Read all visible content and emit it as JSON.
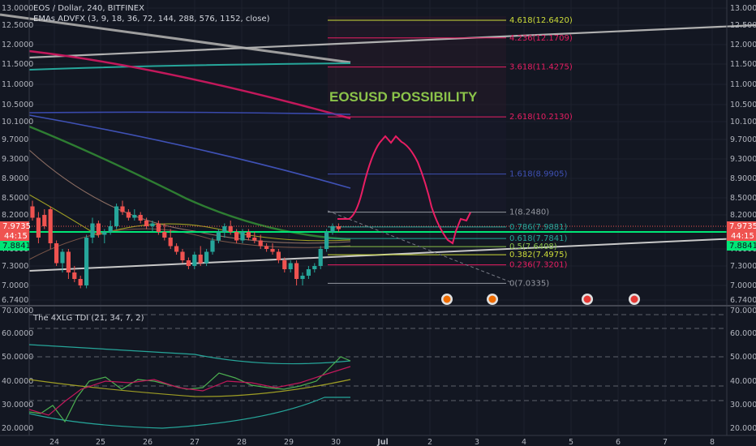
{
  "header": {
    "symbol": "EOS / Dollar, 240, BITFINEX",
    "indicator": "EMAs ADVFX (3, 9, 18, 36, 72, 144, 288, 576, 1152, close)"
  },
  "lower_pane": {
    "title": "The 4XLG TDI (21, 34, 7, 2)"
  },
  "annotation": "EOSUSD POSSIBILITY",
  "price_tags": {
    "left_top": "7.9735",
    "left_mid": "44:15",
    "left_bot": "7.8841",
    "right_top": "7.9735",
    "right_mid": "44:15",
    "right_bot": "7.8841"
  },
  "chart_data": [
    {
      "type": "candlestick",
      "y_axis_labels": [
        "13.0000",
        "12.5000",
        "12.0000",
        "11.5000",
        "11.0000",
        "10.5000",
        "10.1000",
        "9.7000",
        "9.3000",
        "8.9000",
        "8.5000",
        "8.2000",
        "7.9000",
        "7.6000",
        "7.3000",
        "7.0000",
        "6.7400"
      ],
      "x_axis_labels": [
        "24",
        "25",
        "26",
        "27",
        "28",
        "29",
        "30",
        "Jul",
        "2",
        "3",
        "4",
        "5",
        "6",
        "7",
        "8"
      ],
      "fibonacci": [
        {
          "label": "4.618(12.6420)",
          "value": 12.642,
          "color": "#cddc39"
        },
        {
          "label": "4.236(12.1709)",
          "value": 12.1709,
          "color": "#e91e63"
        },
        {
          "label": "3.618(11.4275)",
          "value": 11.4275,
          "color": "#e91e63"
        },
        {
          "label": "2.618(10.2130)",
          "value": 10.213,
          "color": "#e91e63"
        },
        {
          "label": "1.618(8.9905)",
          "value": 8.9905,
          "color": "#3f51b5"
        },
        {
          "label": "1(8.2480)",
          "value": 8.248,
          "color": "#9598a1"
        },
        {
          "label": "0.786(7.9881)",
          "value": 7.9881,
          "color": "#26a69a"
        },
        {
          "label": "0.618(7.7841)",
          "value": 7.7841,
          "color": "#26a69a"
        },
        {
          "label": "0.5(7.6408)",
          "value": 7.6408,
          "color": "#8bc34a"
        },
        {
          "label": "0.382(7.4975)",
          "value": 7.4975,
          "color": "#cddc39"
        },
        {
          "label": "0.236(7.3201)",
          "value": 7.3201,
          "color": "#e91e63"
        },
        {
          "label": "0(7.0335)",
          "value": 7.0335,
          "color": "#9598a1"
        }
      ],
      "candles": [
        {
          "o": 8.35,
          "h": 8.45,
          "l": 8.1,
          "c": 8.15
        },
        {
          "o": 8.15,
          "h": 8.25,
          "l": 7.7,
          "c": 7.8
        },
        {
          "o": 8.2,
          "h": 8.3,
          "l": 7.95,
          "c": 8.0
        },
        {
          "o": 8.3,
          "h": 8.35,
          "l": 7.6,
          "c": 7.7
        },
        {
          "o": 7.7,
          "h": 7.75,
          "l": 7.3,
          "c": 7.35
        },
        {
          "o": 7.35,
          "h": 7.6,
          "l": 7.2,
          "c": 7.55
        },
        {
          "o": 7.55,
          "h": 7.6,
          "l": 7.1,
          "c": 7.2
        },
        {
          "o": 7.2,
          "h": 7.3,
          "l": 7.05,
          "c": 7.1
        },
        {
          "o": 7.1,
          "h": 7.15,
          "l": 6.95,
          "c": 7.0
        },
        {
          "o": 7.0,
          "h": 7.85,
          "l": 6.95,
          "c": 7.8
        },
        {
          "o": 7.8,
          "h": 8.15,
          "l": 7.7,
          "c": 8.05
        },
        {
          "o": 8.05,
          "h": 8.1,
          "l": 7.8,
          "c": 7.85
        },
        {
          "o": 7.85,
          "h": 7.95,
          "l": 7.7,
          "c": 7.9
        },
        {
          "o": 7.9,
          "h": 8.1,
          "l": 7.85,
          "c": 8.0
        },
        {
          "o": 8.0,
          "h": 8.4,
          "l": 7.95,
          "c": 8.35
        },
        {
          "o": 8.35,
          "h": 8.45,
          "l": 8.2,
          "c": 8.25
        },
        {
          "o": 8.25,
          "h": 8.3,
          "l": 8.1,
          "c": 8.15
        },
        {
          "o": 8.15,
          "h": 8.3,
          "l": 8.1,
          "c": 8.2
        },
        {
          "o": 8.2,
          "h": 8.25,
          "l": 8.05,
          "c": 8.1
        },
        {
          "o": 8.1,
          "h": 8.15,
          "l": 7.95,
          "c": 8.0
        },
        {
          "o": 8.0,
          "h": 8.1,
          "l": 7.9,
          "c": 8.05
        },
        {
          "o": 8.05,
          "h": 8.1,
          "l": 7.85,
          "c": 7.9
        },
        {
          "o": 7.9,
          "h": 8.05,
          "l": 7.75,
          "c": 7.8
        },
        {
          "o": 7.8,
          "h": 7.95,
          "l": 7.6,
          "c": 7.65
        },
        {
          "o": 7.65,
          "h": 7.7,
          "l": 7.5,
          "c": 7.55
        },
        {
          "o": 7.55,
          "h": 7.6,
          "l": 7.35,
          "c": 7.4
        },
        {
          "o": 7.4,
          "h": 7.45,
          "l": 7.25,
          "c": 7.3
        },
        {
          "o": 7.3,
          "h": 7.55,
          "l": 7.25,
          "c": 7.5
        },
        {
          "o": 7.5,
          "h": 7.65,
          "l": 7.3,
          "c": 7.35
        },
        {
          "o": 7.35,
          "h": 7.6,
          "l": 7.3,
          "c": 7.55
        },
        {
          "o": 7.55,
          "h": 7.8,
          "l": 7.5,
          "c": 7.75
        },
        {
          "o": 7.75,
          "h": 7.95,
          "l": 7.7,
          "c": 7.9
        },
        {
          "o": 7.9,
          "h": 8.05,
          "l": 7.8,
          "c": 8.0
        },
        {
          "o": 8.0,
          "h": 8.1,
          "l": 7.85,
          "c": 7.9
        },
        {
          "o": 7.9,
          "h": 7.95,
          "l": 7.7,
          "c": 7.75
        },
        {
          "o": 7.75,
          "h": 7.95,
          "l": 7.7,
          "c": 7.9
        },
        {
          "o": 7.9,
          "h": 7.95,
          "l": 7.75,
          "c": 7.8
        },
        {
          "o": 7.8,
          "h": 7.9,
          "l": 7.7,
          "c": 7.75
        },
        {
          "o": 7.75,
          "h": 7.85,
          "l": 7.6,
          "c": 7.65
        },
        {
          "o": 7.65,
          "h": 7.7,
          "l": 7.55,
          "c": 7.6
        },
        {
          "o": 7.6,
          "h": 7.7,
          "l": 7.5,
          "c": 7.55
        },
        {
          "o": 7.55,
          "h": 7.6,
          "l": 7.35,
          "c": 7.4
        },
        {
          "o": 7.4,
          "h": 7.45,
          "l": 7.2,
          "c": 7.25
        },
        {
          "o": 7.25,
          "h": 7.4,
          "l": 7.2,
          "c": 7.35
        },
        {
          "o": 7.35,
          "h": 7.4,
          "l": 7.0,
          "c": 7.1
        },
        {
          "o": 7.1,
          "h": 7.2,
          "l": 7.0,
          "c": 7.15
        },
        {
          "o": 7.15,
          "h": 7.3,
          "l": 7.1,
          "c": 7.25
        },
        {
          "o": 7.25,
          "h": 7.35,
          "l": 7.2,
          "c": 7.3
        },
        {
          "o": 7.3,
          "h": 7.65,
          "l": 7.25,
          "c": 7.6
        },
        {
          "o": 7.6,
          "h": 7.95,
          "l": 7.55,
          "c": 7.9
        },
        {
          "o": 7.9,
          "h": 8.05,
          "l": 7.85,
          "c": 8.0
        },
        {
          "o": 8.0,
          "h": 8.05,
          "l": 7.9,
          "c": 7.95
        }
      ]
    },
    {
      "type": "line",
      "y_axis_labels": [
        "70.0000",
        "60.0000",
        "50.0000",
        "40.0000",
        "30.0000",
        "20.0000"
      ],
      "ylim": [
        20,
        70
      ]
    }
  ],
  "colors": {
    "background": "#131722",
    "grid": "#1e222d",
    "up": "#26a69a",
    "down": "#ef5350",
    "projection": "#e91e63",
    "annotation": "#8bc34a"
  }
}
